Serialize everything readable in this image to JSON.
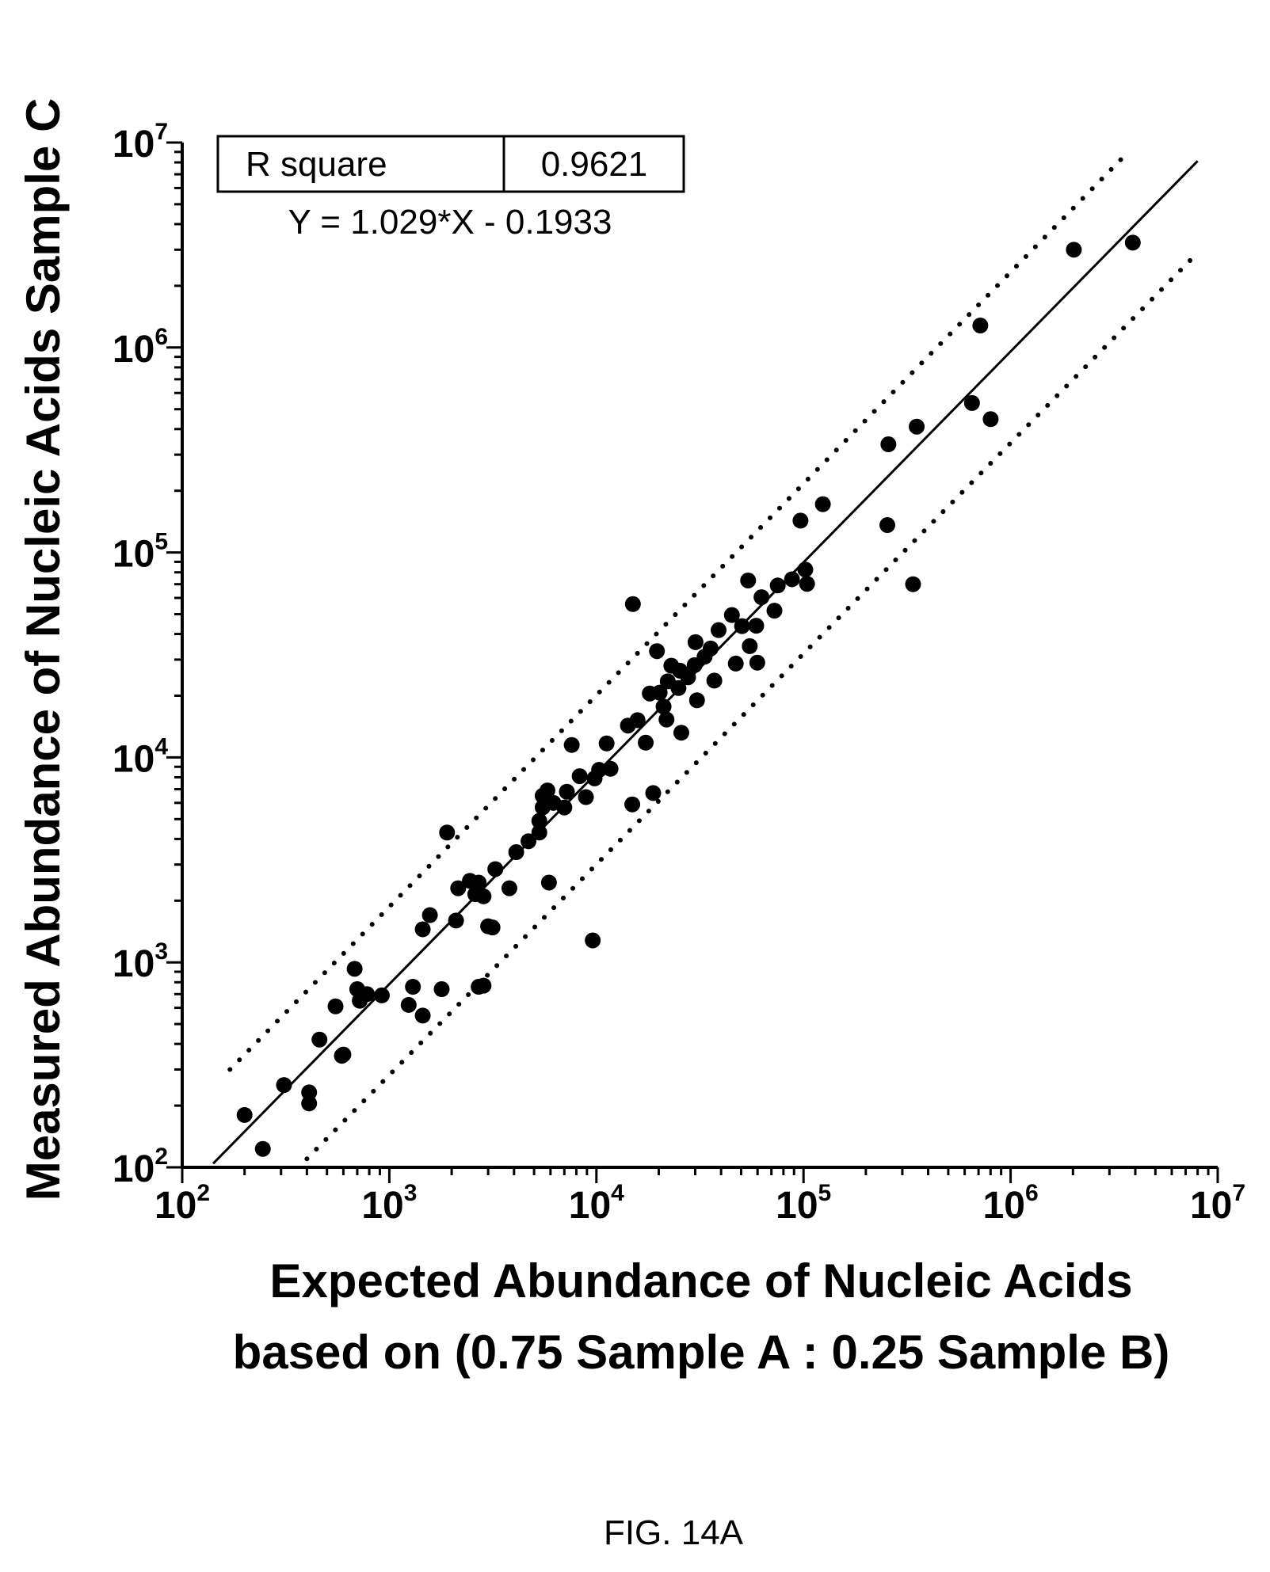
{
  "chart_data": {
    "type": "scatter",
    "xlabel_line1": "Expected Abundance of Nucleic Acids",
    "xlabel_line2": "based on (0.75 Sample A : 0.25 Sample B)",
    "ylabel": "Measured Abundance of Nucleic Acids Sample C",
    "x_scale": "log",
    "y_scale": "log",
    "xlim": [
      100,
      10000000
    ],
    "ylim": [
      100,
      10000000
    ],
    "x_ticks": [
      {
        "base": "10",
        "exp": "2"
      },
      {
        "base": "10",
        "exp": "3"
      },
      {
        "base": "10",
        "exp": "4"
      },
      {
        "base": "10",
        "exp": "5"
      },
      {
        "base": "10",
        "exp": "6"
      },
      {
        "base": "10",
        "exp": "7"
      }
    ],
    "y_ticks": [
      {
        "base": "10",
        "exp": "2"
      },
      {
        "base": "10",
        "exp": "3"
      },
      {
        "base": "10",
        "exp": "4"
      },
      {
        "base": "10",
        "exp": "5"
      },
      {
        "base": "10",
        "exp": "6"
      },
      {
        "base": "10",
        "exp": "7"
      }
    ],
    "stats": {
      "r_square_label": "R square",
      "r_square_value": "0.9621",
      "equation": "Y = 1.029*X - 0.1933"
    },
    "fit_line": {
      "slope": 1.029,
      "intercept": -0.1933,
      "x_range": [
        141,
        8000000
      ]
    },
    "prediction_band_upper": {
      "x_range": [
        170,
        3700000
      ],
      "y_range": [
        300,
        9000000
      ]
    },
    "prediction_band_lower": {
      "x_range": [
        400,
        8000000
      ],
      "y_range": [
        110,
        2900000
      ]
    },
    "grid": false,
    "legend": "none",
    "points": [
      [
        200,
        180
      ],
      [
        245,
        123
      ],
      [
        310,
        252
      ],
      [
        410,
        232
      ],
      [
        410,
        205
      ],
      [
        460,
        420
      ],
      [
        550,
        610
      ],
      [
        600,
        355
      ],
      [
        590,
        350
      ],
      [
        680,
        930
      ],
      [
        700,
        740
      ],
      [
        720,
        650
      ],
      [
        780,
        700
      ],
      [
        920,
        690
      ],
      [
        1240,
        620
      ],
      [
        1300,
        760
      ],
      [
        1450,
        1450
      ],
      [
        1450,
        550
      ],
      [
        1570,
        1700
      ],
      [
        1790,
        740
      ],
      [
        1900,
        4300
      ],
      [
        2100,
        1600
      ],
      [
        2150,
        2300
      ],
      [
        2450,
        2500
      ],
      [
        2600,
        2150
      ],
      [
        2700,
        2450
      ],
      [
        2700,
        760
      ],
      [
        2850,
        2100
      ],
      [
        2850,
        770
      ],
      [
        3000,
        1500
      ],
      [
        3150,
        1480
      ],
      [
        3250,
        2850
      ],
      [
        3800,
        2300
      ],
      [
        4100,
        3450
      ],
      [
        4700,
        3900
      ],
      [
        5300,
        4300
      ],
      [
        5300,
        4900
      ],
      [
        5500,
        5700
      ],
      [
        5500,
        6500
      ],
      [
        5800,
        6900
      ],
      [
        5900,
        2450
      ],
      [
        6200,
        6000
      ],
      [
        7000,
        5700
      ],
      [
        7200,
        6800
      ],
      [
        7600,
        11500
      ],
      [
        8300,
        8100
      ],
      [
        8900,
        6400
      ],
      [
        9600,
        1280
      ],
      [
        9800,
        7900
      ],
      [
        10300,
        8700
      ],
      [
        11200,
        11700
      ],
      [
        11700,
        8800
      ],
      [
        14200,
        14300
      ],
      [
        14900,
        5900
      ],
      [
        15000,
        56000
      ],
      [
        15800,
        15200
      ],
      [
        17300,
        11800
      ],
      [
        18100,
        20500
      ],
      [
        18800,
        6700
      ],
      [
        19600,
        33000
      ],
      [
        20200,
        20700
      ],
      [
        21100,
        17700
      ],
      [
        21800,
        15300
      ],
      [
        22100,
        23500
      ],
      [
        23000,
        28000
      ],
      [
        24900,
        21800
      ],
      [
        25300,
        26500
      ],
      [
        25700,
        13200
      ],
      [
        27700,
        24600
      ],
      [
        29800,
        28200
      ],
      [
        30100,
        36500
      ],
      [
        30600,
        19000
      ],
      [
        33300,
        31000
      ],
      [
        35600,
        34000
      ],
      [
        37100,
        23700
      ],
      [
        38900,
        41800
      ],
      [
        45100,
        49500
      ],
      [
        47100,
        28700
      ],
      [
        50500,
        43700
      ],
      [
        54000,
        73000
      ],
      [
        55000,
        34900
      ],
      [
        59100,
        43900
      ],
      [
        59800,
        29000
      ],
      [
        62700,
        60500
      ],
      [
        72400,
        52000
      ],
      [
        75100,
        69000
      ],
      [
        88000,
        74000
      ],
      [
        96700,
        143000
      ],
      [
        102000,
        82500
      ],
      [
        104000,
        70300
      ],
      [
        124000,
        172000
      ],
      [
        254000,
        136000
      ],
      [
        257000,
        337000
      ],
      [
        338000,
        70000
      ],
      [
        352000,
        411000
      ],
      [
        651000,
        536000
      ],
      [
        714000,
        1280000
      ],
      [
        801000,
        447000
      ],
      [
        2020000,
        3000000
      ],
      [
        3890000,
        3250000
      ]
    ]
  },
  "caption": "FIG. 14A"
}
